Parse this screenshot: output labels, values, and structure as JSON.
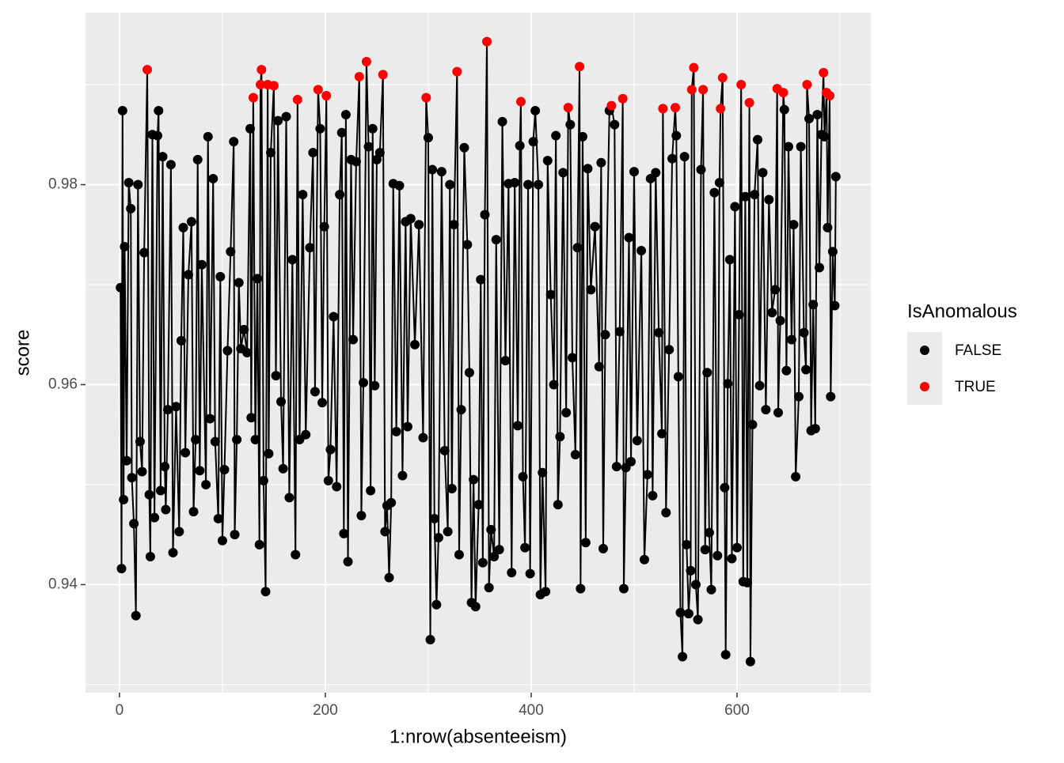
{
  "chart_data": {
    "type": "line-points",
    "x_label": "1:nrow(absenteeism)",
    "y_label": "score",
    "legend_title": "IsAnomalous",
    "series": [
      {
        "name": "FALSE",
        "color": "#000000"
      },
      {
        "name": "TRUE",
        "color": "#ff0000"
      }
    ],
    "x": [
      1,
      2,
      3,
      4,
      5,
      7,
      9,
      11,
      12,
      14,
      16,
      18,
      20,
      22,
      24,
      27,
      29,
      30,
      32,
      34,
      37,
      38,
      40,
      42,
      44,
      45,
      47,
      50,
      52,
      55,
      58,
      60,
      62,
      64,
      67,
      70,
      72,
      74,
      76,
      78,
      80,
      84,
      86,
      88,
      91,
      93,
      96,
      98,
      100,
      102,
      105,
      108,
      111,
      112,
      114,
      116,
      118,
      121,
      124,
      127,
      128,
      130,
      132,
      134,
      136,
      137,
      138,
      140,
      142,
      144,
      145,
      147,
      150,
      152,
      154,
      157,
      159,
      162,
      165,
      168,
      171,
      173,
      175,
      178,
      181,
      185,
      188,
      190,
      193,
      195,
      197,
      199,
      201,
      203,
      205,
      208,
      211,
      214,
      216,
      218,
      220,
      222,
      225,
      227,
      230,
      233,
      235,
      237,
      240,
      242,
      244,
      246,
      248,
      250,
      253,
      256,
      258,
      260,
      262,
      264,
      266,
      269,
      272,
      275,
      278,
      280,
      283,
      287,
      291,
      295,
      298,
      300,
      302,
      304,
      306,
      308,
      310,
      313,
      316,
      319,
      321,
      323,
      325,
      328,
      330,
      332,
      335,
      338,
      340,
      342,
      344,
      346,
      349,
      351,
      353,
      355,
      357,
      359,
      361,
      364,
      366,
      369,
      372,
      375,
      378,
      381,
      384,
      387,
      389,
      390,
      392,
      394,
      397,
      399,
      402,
      404,
      407,
      409,
      411,
      414,
      416,
      419,
      422,
      424,
      426,
      428,
      431,
      434,
      436,
      438,
      440,
      443,
      445,
      447,
      448,
      450,
      453,
      455,
      458,
      462,
      466,
      468,
      470,
      472,
      476,
      478,
      481,
      483,
      486,
      489,
      490,
      492,
      495,
      497,
      500,
      503,
      507,
      510,
      513,
      516,
      518,
      521,
      524,
      527,
      528,
      531,
      534,
      537,
      540,
      541,
      543,
      545,
      547,
      549,
      551,
      553,
      555,
      556,
      558,
      560,
      562,
      565,
      567,
      569,
      571,
      573,
      575,
      578,
      581,
      583,
      584,
      586,
      588,
      589,
      591,
      593,
      595,
      598,
      600,
      602,
      604,
      606,
      608,
      610,
      612,
      613,
      615,
      617,
      620,
      622,
      625,
      628,
      631,
      634,
      637,
      639,
      640,
      642,
      645,
      646,
      648,
      650,
      653,
      655,
      657,
      660,
      662,
      665,
      667,
      668,
      670,
      672,
      674,
      676,
      678,
      680,
      682,
      684,
      685,
      687,
      688,
      690,
      691,
      693,
      695,
      696
    ],
    "values": [
      0.9697,
      0.9416,
      0.9874,
      0.9485,
      0.9738,
      0.9524,
      0.9802,
      0.9776,
      0.9507,
      0.9461,
      0.9369,
      0.98,
      0.9543,
      0.9513,
      0.9732,
      0.9915,
      0.949,
      0.9428,
      0.985,
      0.9467,
      0.9849,
      0.9874,
      0.9494,
      0.9828,
      0.9518,
      0.9475,
      0.9575,
      0.982,
      0.9432,
      0.9578,
      0.9453,
      0.9644,
      0.9757,
      0.9532,
      0.971,
      0.9763,
      0.9473,
      0.9545,
      0.9825,
      0.9514,
      0.972,
      0.95,
      0.9848,
      0.9566,
      0.9806,
      0.9543,
      0.9466,
      0.9708,
      0.9444,
      0.9515,
      0.9634,
      0.9733,
      0.9843,
      0.945,
      0.9545,
      0.9702,
      0.9636,
      0.9655,
      0.9632,
      0.9856,
      0.9567,
      0.9887,
      0.9545,
      0.9706,
      0.944,
      0.99,
      0.9915,
      0.9504,
      0.9393,
      0.99,
      0.9531,
      0.9832,
      0.9899,
      0.9609,
      0.9864,
      0.9583,
      0.9516,
      0.9868,
      0.9487,
      0.9725,
      0.943,
      0.9885,
      0.9545,
      0.979,
      0.955,
      0.9737,
      0.9832,
      0.9593,
      0.9895,
      0.9856,
      0.9582,
      0.9758,
      0.9889,
      0.9504,
      0.9535,
      0.9668,
      0.9498,
      0.979,
      0.9852,
      0.9451,
      0.987,
      0.9423,
      0.9825,
      0.9645,
      0.9823,
      0.9908,
      0.9469,
      0.9602,
      0.9923,
      0.9838,
      0.9494,
      0.9856,
      0.9599,
      0.9825,
      0.9832,
      0.991,
      0.9453,
      0.9479,
      0.9407,
      0.9482,
      0.9801,
      0.9553,
      0.9799,
      0.9509,
      0.9763,
      0.9558,
      0.9766,
      0.964,
      0.976,
      0.9547,
      0.9887,
      0.9847,
      0.9345,
      0.9815,
      0.9466,
      0.938,
      0.9447,
      0.9813,
      0.9534,
      0.9453,
      0.98,
      0.9496,
      0.976,
      0.9913,
      0.943,
      0.9575,
      0.9837,
      0.974,
      0.9612,
      0.9382,
      0.9505,
      0.9378,
      0.948,
      0.9705,
      0.9422,
      0.977,
      0.9943,
      0.9397,
      0.9455,
      0.9428,
      0.9745,
      0.9435,
      0.9863,
      0.9624,
      0.9801,
      0.9412,
      0.9802,
      0.9559,
      0.9839,
      0.9883,
      0.9508,
      0.9437,
      0.98,
      0.9411,
      0.9843,
      0.9874,
      0.98,
      0.939,
      0.9512,
      0.9393,
      0.9824,
      0.969,
      0.96,
      0.9849,
      0.948,
      0.9548,
      0.9812,
      0.9572,
      0.9877,
      0.986,
      0.9627,
      0.953,
      0.9737,
      0.9918,
      0.9396,
      0.9848,
      0.9442,
      0.9816,
      0.9695,
      0.9758,
      0.9618,
      0.9822,
      0.9436,
      0.965,
      0.9874,
      0.9879,
      0.986,
      0.9518,
      0.9653,
      0.9886,
      0.9396,
      0.9517,
      0.9747,
      0.9523,
      0.9813,
      0.9544,
      0.9734,
      0.9425,
      0.951,
      0.9806,
      0.9489,
      0.9812,
      0.9652,
      0.9551,
      0.9876,
      0.9472,
      0.9635,
      0.9826,
      0.9877,
      0.9849,
      0.9608,
      0.9372,
      0.9328,
      0.9828,
      0.944,
      0.9371,
      0.9414,
      0.9895,
      0.9917,
      0.94,
      0.9365,
      0.9815,
      0.9895,
      0.9435,
      0.9612,
      0.9452,
      0.9395,
      0.9792,
      0.9429,
      0.9802,
      0.9876,
      0.9907,
      0.9497,
      0.933,
      0.9601,
      0.9725,
      0.9426,
      0.9778,
      0.9437,
      0.967,
      0.99,
      0.9403,
      0.9788,
      0.9402,
      0.9882,
      0.9323,
      0.956,
      0.979,
      0.9845,
      0.9599,
      0.9812,
      0.9575,
      0.9785,
      0.9672,
      0.9695,
      0.9896,
      0.9572,
      0.9664,
      0.9892,
      0.9875,
      0.9614,
      0.9838,
      0.9645,
      0.976,
      0.9508,
      0.9588,
      0.9838,
      0.9652,
      0.9615,
      0.99,
      0.9866,
      0.9554,
      0.968,
      0.9556,
      0.987,
      0.9717,
      0.985,
      0.9912,
      0.9848,
      0.9892,
      0.9757,
      0.9889,
      0.9588,
      0.9733,
      0.9679,
      0.9808
    ],
    "point_series": [
      0,
      0,
      0,
      0,
      0,
      0,
      0,
      0,
      0,
      0,
      0,
      0,
      0,
      0,
      0,
      1,
      0,
      0,
      0,
      0,
      0,
      0,
      0,
      0,
      0,
      0,
      0,
      0,
      0,
      0,
      0,
      0,
      0,
      0,
      0,
      0,
      0,
      0,
      0,
      0,
      0,
      0,
      0,
      0,
      0,
      0,
      0,
      0,
      0,
      0,
      0,
      0,
      0,
      0,
      0,
      0,
      0,
      0,
      0,
      0,
      0,
      1,
      0,
      0,
      0,
      1,
      1,
      0,
      0,
      1,
      0,
      0,
      1,
      0,
      0,
      0,
      0,
      0,
      0,
      0,
      0,
      1,
      0,
      0,
      0,
      0,
      0,
      0,
      1,
      0,
      0,
      0,
      1,
      0,
      0,
      0,
      0,
      0,
      0,
      0,
      0,
      0,
      0,
      0,
      0,
      1,
      0,
      0,
      1,
      0,
      0,
      0,
      0,
      0,
      0,
      1,
      0,
      0,
      0,
      0,
      0,
      0,
      0,
      0,
      0,
      0,
      0,
      0,
      0,
      0,
      1,
      0,
      0,
      0,
      0,
      0,
      0,
      0,
      0,
      0,
      0,
      0,
      0,
      1,
      0,
      0,
      0,
      0,
      0,
      0,
      0,
      0,
      0,
      0,
      0,
      0,
      1,
      0,
      0,
      0,
      0,
      0,
      0,
      0,
      0,
      0,
      0,
      0,
      0,
      1,
      0,
      0,
      0,
      0,
      0,
      0,
      0,
      0,
      0,
      0,
      0,
      0,
      0,
      0,
      0,
      0,
      0,
      0,
      1,
      0,
      0,
      0,
      0,
      1,
      0,
      0,
      0,
      0,
      0,
      0,
      0,
      0,
      0,
      0,
      0,
      1,
      0,
      0,
      0,
      1,
      0,
      0,
      0,
      0,
      0,
      0,
      0,
      0,
      0,
      0,
      0,
      0,
      0,
      0,
      1,
      0,
      0,
      0,
      1,
      0,
      0,
      0,
      0,
      0,
      0,
      0,
      0,
      1,
      1,
      0,
      0,
      0,
      1,
      0,
      0,
      0,
      0,
      0,
      0,
      0,
      1,
      1,
      0,
      0,
      0,
      0,
      0,
      0,
      0,
      0,
      1,
      0,
      0,
      0,
      1,
      0,
      0,
      0,
      0,
      0,
      0,
      0,
      0,
      0,
      0,
      1,
      0,
      0,
      1,
      0,
      0,
      0,
      0,
      0,
      0,
      0,
      0,
      0,
      0,
      1,
      0,
      0,
      0,
      0,
      0,
      0,
      0,
      1,
      0,
      1,
      0,
      1,
      0,
      0,
      0,
      0
    ],
    "xlim": [
      -33,
      730
    ],
    "ylim": [
      0.9292,
      0.9972
    ],
    "xticks": [
      0,
      200,
      400,
      600
    ],
    "yticks": [
      0.94,
      0.96,
      0.98
    ],
    "x_minor_grid": [
      100,
      300,
      500,
      700
    ],
    "y_minor_grid": [
      0.93,
      0.95,
      0.97,
      0.99
    ],
    "grid": true,
    "legend": "right"
  }
}
